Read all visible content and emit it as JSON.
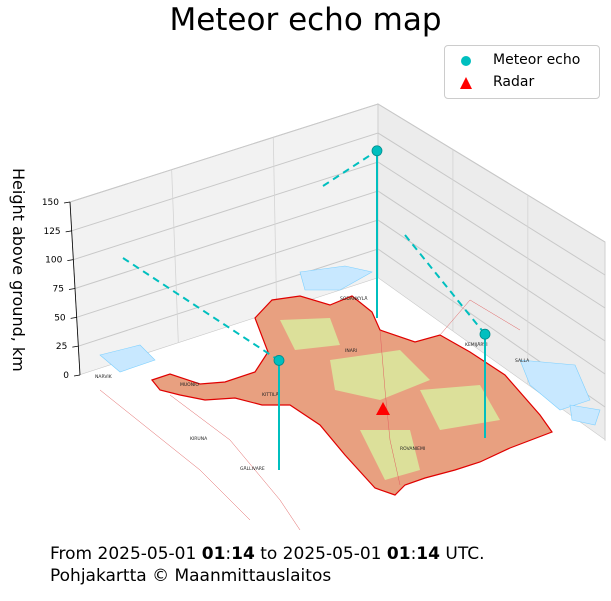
{
  "chart_data": {
    "type": "scatter",
    "projection": "3d",
    "title": "Meteor echo map",
    "zlabel": "Height above ground, km",
    "zlim": [
      0,
      150
    ],
    "zticks": [
      "0",
      "25",
      "50",
      "75",
      "100",
      "125",
      "150"
    ],
    "legend": {
      "placement": "top-right",
      "entries": [
        {
          "name": "Meteor echo",
          "marker": "circle",
          "color": "#00bfbf"
        },
        {
          "name": "Radar",
          "marker": "triangle",
          "color": "#ff0000"
        }
      ]
    },
    "series": [
      {
        "name": "Meteor echo",
        "color": "#00bfbf",
        "points": [
          {
            "id": "echo-1",
            "height_km": 145
          },
          {
            "id": "echo-2",
            "height_km": 95
          },
          {
            "id": "echo-3",
            "height_km": 90
          }
        ]
      },
      {
        "name": "Radar",
        "color": "#ff0000",
        "points": [
          {
            "id": "radar",
            "height_km": 0
          }
        ]
      }
    ],
    "basemap": {
      "region_outline_color": "#e00000",
      "region_fill_color": "#e8a080",
      "place_labels": [
        "SODANKYLÄ",
        "INARI",
        "KITTILÄ",
        "MUONIO",
        "ROVANIEMI",
        "KEMIJÄRVI",
        "SALLA",
        "GÄLLIVARE",
        "KIRUNA",
        "NARVIK"
      ]
    }
  },
  "footer": {
    "line1_prefix": "From 2025-05-01 ",
    "start_hour": "01",
    "sep1": ":",
    "start_min": "14",
    "line1_mid": " to 2025-05-01 ",
    "end_hour": "01",
    "sep2": ":",
    "end_min": "14",
    "line1_suffix": " UTC.",
    "line2": "Pohjakartta © Maanmittauslaitos"
  }
}
